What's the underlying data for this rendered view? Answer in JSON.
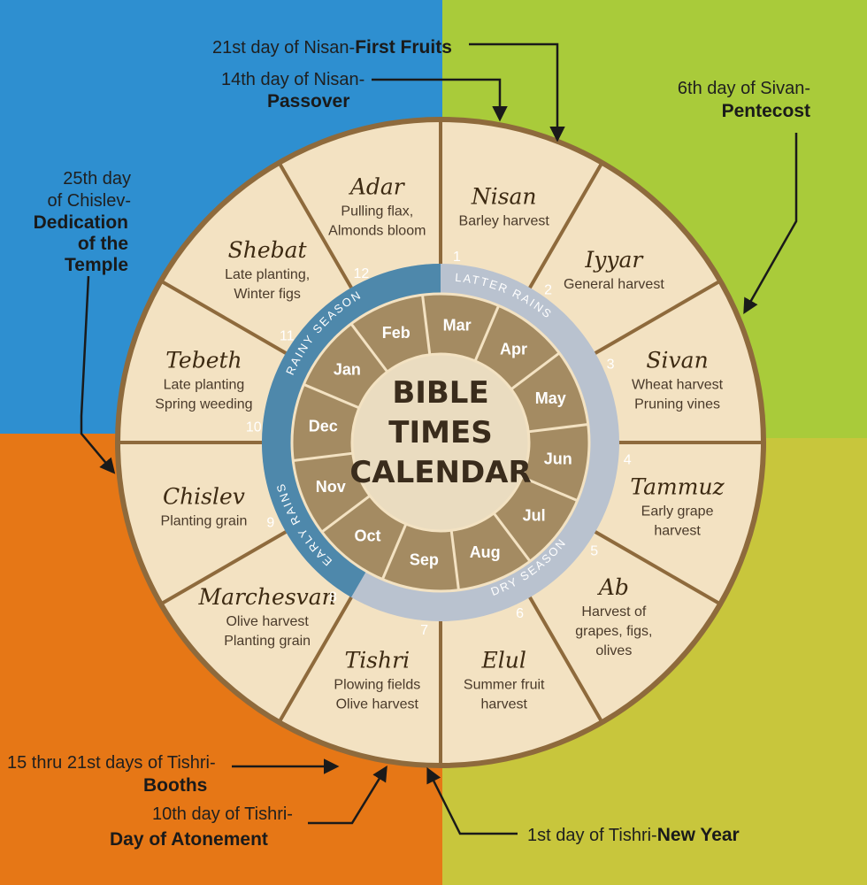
{
  "title_lines": [
    "BIBLE",
    "TIMES",
    "CALENDAR"
  ],
  "colors": {
    "quad_top_left": "#2e8fd0",
    "quad_top_right": "#a9cb3a",
    "quad_bottom_left": "#e67716",
    "quad_bottom_right": "#c8c63c",
    "outer_ring": "#f3e2c2",
    "ring_border": "#8e6a3c",
    "inner_ring": "#a48b62",
    "center": "#eadcc0",
    "season_dark": "#4e88ab",
    "season_light": "#b9c2cf"
  },
  "hebrew_months": [
    {
      "num": "1",
      "name": "Nisan",
      "activities": [
        "Barley harvest"
      ]
    },
    {
      "num": "2",
      "name": "Iyyar",
      "activities": [
        "General harvest"
      ]
    },
    {
      "num": "3",
      "name": "Sivan",
      "activities": [
        "Wheat harvest",
        "Pruning vines"
      ]
    },
    {
      "num": "4",
      "name": "Tammuz",
      "activities": [
        "Early grape",
        "harvest"
      ]
    },
    {
      "num": "5",
      "name": "Ab",
      "activities": [
        "Harvest of",
        "grapes, figs,",
        "olives"
      ]
    },
    {
      "num": "6",
      "name": "Elul",
      "activities": [
        "Summer fruit",
        "harvest"
      ]
    },
    {
      "num": "7",
      "name": "Tishri",
      "activities": [
        "Plowing fields",
        "Olive harvest"
      ]
    },
    {
      "num": "8",
      "name": "Marchesvan",
      "activities": [
        "Olive harvest",
        "Planting grain"
      ]
    },
    {
      "num": "9",
      "name": "Chislev",
      "activities": [
        "Planting grain"
      ]
    },
    {
      "num": "10",
      "name": "Tebeth",
      "activities": [
        "Late planting",
        "Spring weeding"
      ]
    },
    {
      "num": "11",
      "name": "Shebat",
      "activities": [
        "Late planting,",
        "Winter figs"
      ]
    },
    {
      "num": "12",
      "name": "Adar",
      "activities": [
        "Pulling flax,",
        "Almonds bloom"
      ]
    }
  ],
  "modern_months": [
    "Mar",
    "Apr",
    "May",
    "Jun",
    "Jul",
    "Aug",
    "Sep",
    "Oct",
    "Nov",
    "Dec",
    "Jan",
    "Feb"
  ],
  "seasons": {
    "latter": "LATTER RAINS",
    "dry": "DRY SEASON",
    "early": "EARLY RAINS",
    "rainy": "RAINY SEASON"
  },
  "feasts": {
    "first_fruits": {
      "date": "21st day of Nisan-",
      "name": "First Fruits"
    },
    "passover": {
      "date": "14th day of Nisan-",
      "name": "Passover"
    },
    "pentecost": {
      "date": "6th day of Sivan-",
      "name": "Pentecost"
    },
    "dedication": {
      "date_lines": [
        "25th day",
        "of Chislev-"
      ],
      "name_lines": [
        "Dedication",
        "of the",
        "Temple"
      ]
    },
    "booths": {
      "date": "15 thru 21st days of Tishri-",
      "name": "Booths"
    },
    "atonement": {
      "date": "10th day of Tishri-",
      "name": "Day of Atonement"
    },
    "new_year": {
      "date": "1st day of Tishri-",
      "name": "New Year"
    }
  }
}
